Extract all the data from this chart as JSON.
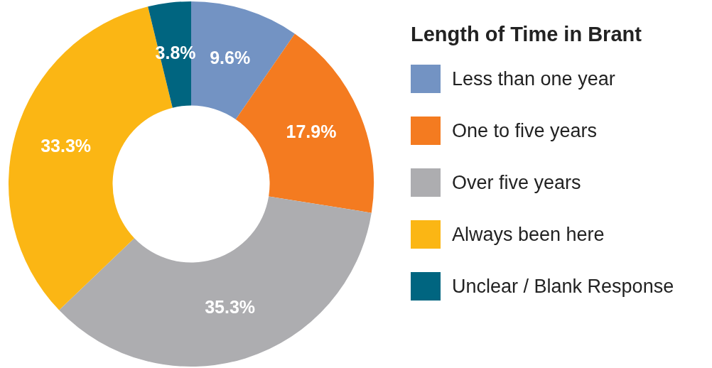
{
  "chart_data": {
    "type": "donut",
    "legend_title": "Length of Time in Brant",
    "categories": [
      "Less than one year",
      "One to five years",
      "Over five years",
      "Always been here",
      "Unclear / Blank Response"
    ],
    "values": [
      9.6,
      17.9,
      35.3,
      33.3,
      3.8
    ],
    "colors": [
      "#7393c3",
      "#f47b20",
      "#adadb0",
      "#fbb614",
      "#006580"
    ],
    "value_labels": [
      "9.6%",
      "17.9%",
      "35.3%",
      "33.3%",
      "3.8%"
    ],
    "legend": "right"
  }
}
